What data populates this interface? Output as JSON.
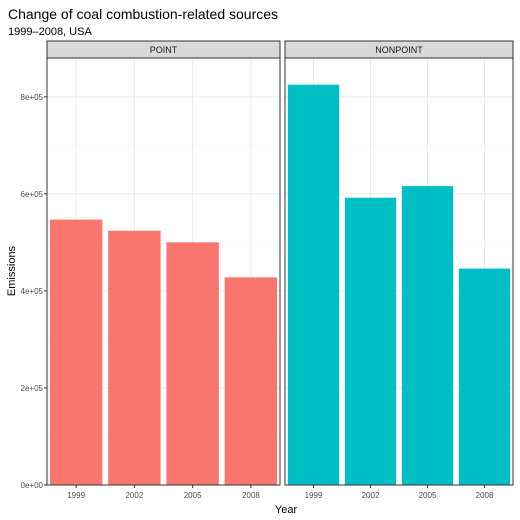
{
  "chart_data": {
    "type": "bar",
    "title": "Change of coal combustion-related sources",
    "subtitle": "1999–2008, USA",
    "xlabel": "Year",
    "ylabel": "Emissions",
    "categories": [
      "1999",
      "2002",
      "2005",
      "2008"
    ],
    "ylim": [
      0,
      880000
    ],
    "yticks": [
      0,
      200000,
      400000,
      600000,
      800000
    ],
    "ytick_labels": [
      "0e+00",
      "2e+05",
      "4e+05",
      "6e+05",
      "8e+05"
    ],
    "grid": true,
    "legend": "none",
    "panels": [
      {
        "name": "POINT",
        "color": "#F8766D",
        "values": [
          547000,
          524000,
          500000,
          428000
        ]
      },
      {
        "name": "NONPOINT",
        "color": "#00BFC4",
        "values": [
          825000,
          592000,
          616000,
          446000
        ]
      }
    ]
  },
  "colors": {
    "strip_fill": "#d9d9d9",
    "frame": "#333333",
    "grid_major": "#ebebeb",
    "grid_minor": "#f5f5f5",
    "panel_bg": "#ffffff"
  }
}
